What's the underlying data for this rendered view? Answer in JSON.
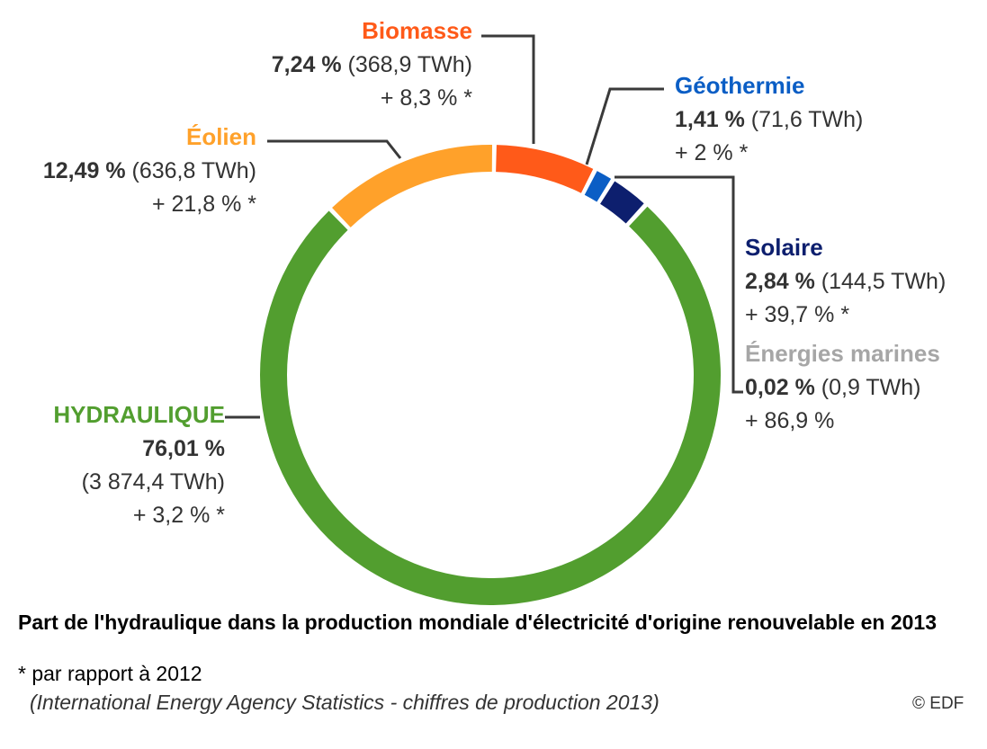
{
  "chart_data": {
    "type": "pie",
    "variant": "donut",
    "slices": [
      {
        "label": "Biomasse",
        "percent": 7.24,
        "percent_label": "7,24 %",
        "twh_label": "(368,9 TWh)",
        "change_label": "+ 8,3 % *",
        "color": "#ff5a19"
      },
      {
        "label": "Géothermie",
        "percent": 1.41,
        "percent_label": "1,41 %",
        "twh_label": "(71,6 TWh)",
        "change_label": "+ 2 % *",
        "color": "#0b5ec5"
      },
      {
        "label": "Solaire",
        "percent": 2.84,
        "percent_label": "2,84 %",
        "twh_label": "(144,5 TWh)",
        "change_label": "+ 39,7 % *",
        "color": "#0d1f6e"
      },
      {
        "label": "Énergies marines",
        "percent": 0.02,
        "percent_label": "0,02 %",
        "twh_label": "(0,9 TWh)",
        "change_label": "+ 86,9 %",
        "color": "#a6a6a6"
      },
      {
        "label": "HYDRAULIQUE",
        "percent": 76.01,
        "percent_label": "76,01 %",
        "twh_label": "(3 874,4 TWh)",
        "change_label": "+ 3,2 % *",
        "color": "#529e2f"
      },
      {
        "label": "Éolien",
        "percent": 12.49,
        "percent_label": "12,49 %",
        "twh_label": "(636,8 TWh)",
        "change_label": "+ 21,8 % *",
        "color": "#ffa12a"
      }
    ],
    "title": "Part de l'hydraulique dans la production mondiale d'électricité d'origine renouvelable en 2013",
    "footnote": "* par rapport à 2012",
    "source": "(International Energy Agency Statistics - chiffres de production 2013)"
  },
  "copyright": "© EDF"
}
